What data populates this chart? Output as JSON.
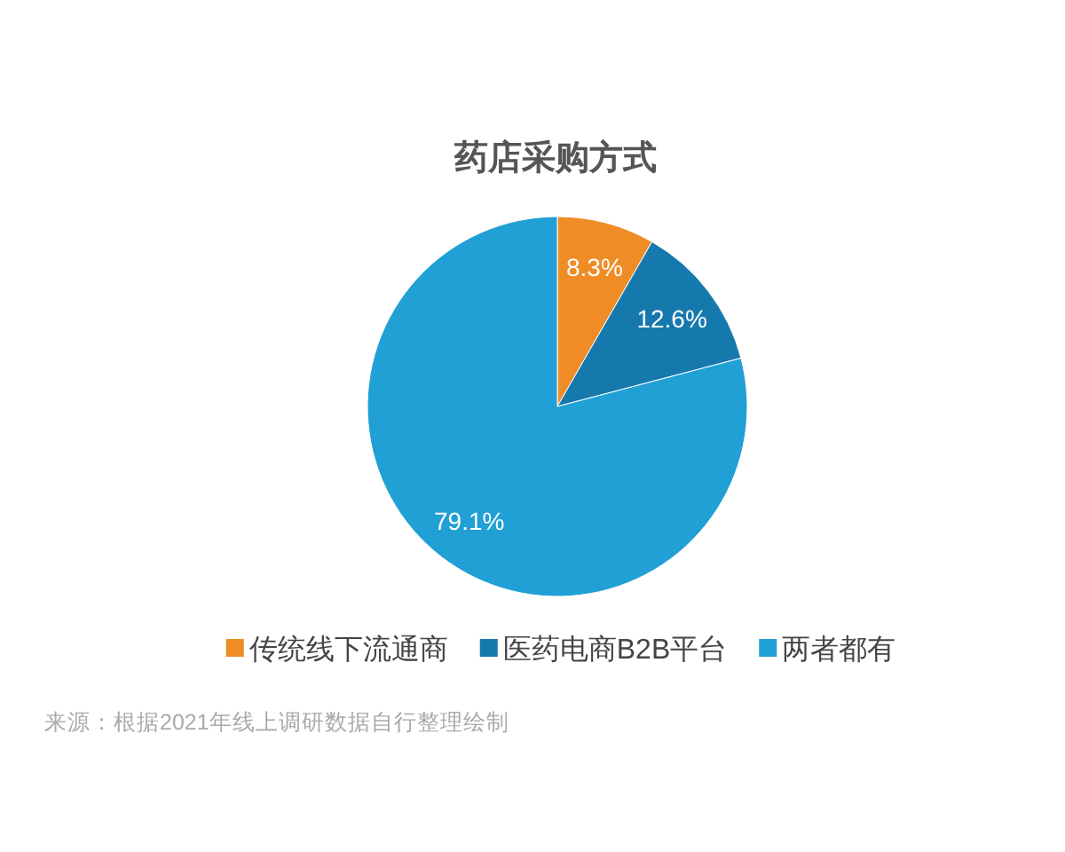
{
  "chart_data": {
    "type": "pie",
    "title": "药店采购方式",
    "categories": [
      "传统线下流通商",
      "医药电商B2B平台",
      "两者都有"
    ],
    "values": [
      8.3,
      12.6,
      79.1
    ],
    "colors": [
      "#ef8c26",
      "#1679ae",
      "#20a0d5"
    ],
    "value_labels": [
      "8.3%",
      "12.6%",
      "79.1%"
    ],
    "legend": "bottom",
    "annotations": [
      "来源：根据2021年线上调研数据自行整理绘制"
    ]
  }
}
